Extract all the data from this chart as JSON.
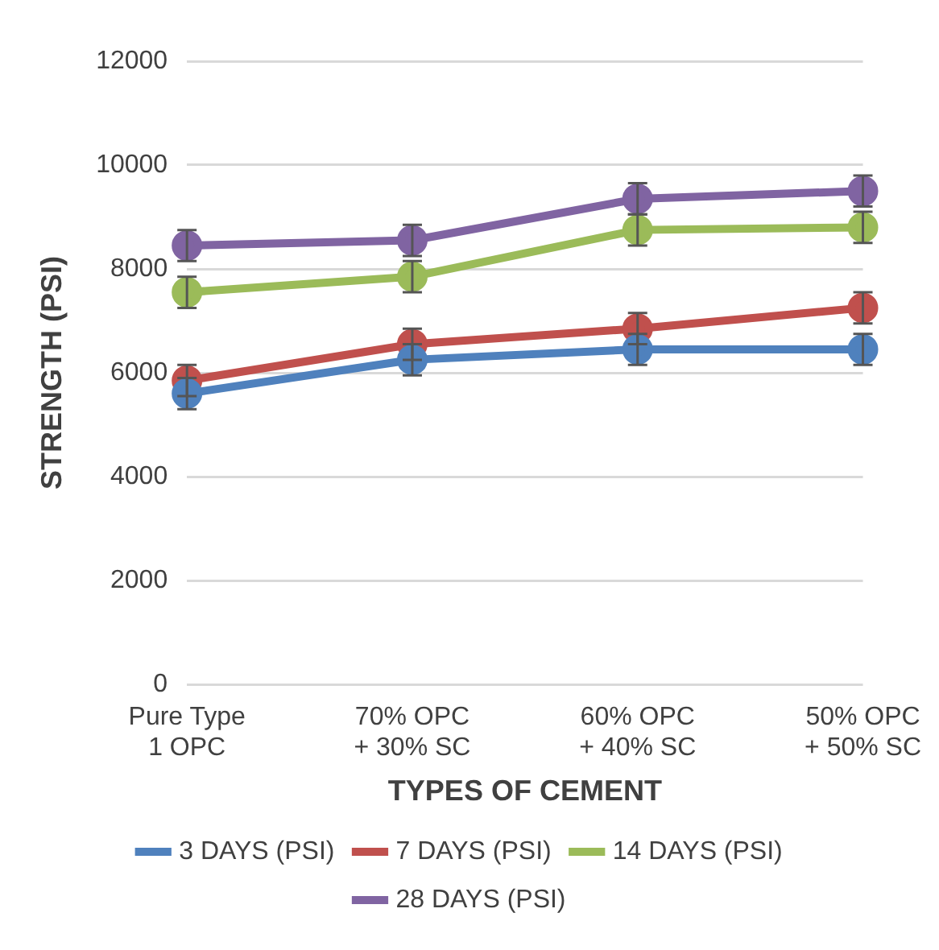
{
  "chart_data": {
    "type": "line",
    "xlabel": "TYPES OF CEMENT",
    "ylabel": "STRENGTH (PSI)",
    "categories": [
      "Pure Type\n1 OPC",
      "70% OPC\n+ 30% SC",
      "60% OPC\n+ 40% SC",
      "50% OPC\n+ 50% SC"
    ],
    "series": [
      {
        "name": "3 DAYS (PSI)",
        "color": "#4f81bd",
        "values": [
          5600,
          6250,
          6450,
          6450
        ],
        "errors": [
          300,
          300,
          300,
          300
        ]
      },
      {
        "name": "7 DAYS (PSI)",
        "color": "#c0504d",
        "values": [
          5850,
          6550,
          6850,
          7250
        ],
        "errors": [
          300,
          300,
          300,
          300
        ]
      },
      {
        "name": "14 DAYS (PSI)",
        "color": "#9bbb59",
        "values": [
          7550,
          7850,
          8750,
          8800
        ],
        "errors": [
          300,
          300,
          300,
          300
        ]
      },
      {
        "name": "28 DAYS (PSI)",
        "color": "#8064a2",
        "values": [
          8450,
          8550,
          9350,
          9500
        ],
        "errors": [
          300,
          300,
          300,
          300
        ]
      }
    ],
    "ylim": [
      0,
      12000
    ],
    "yticks": [
      0,
      2000,
      4000,
      6000,
      8000,
      10000,
      12000
    ],
    "grid": "y",
    "legend": "bottom",
    "marker": "circle",
    "line_style": "solid"
  }
}
